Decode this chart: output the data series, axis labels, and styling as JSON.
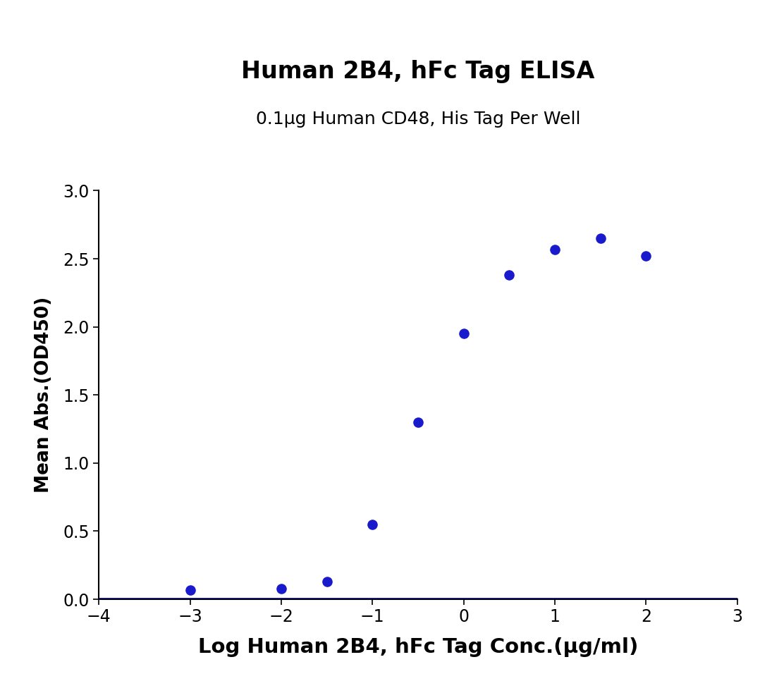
{
  "title": "Human 2B4, hFc Tag ELISA",
  "subtitle": "0.1μg Human CD48, His Tag Per Well",
  "xlabel": "Log Human 2B4, hFc Tag Conc.(μg/ml)",
  "ylabel": "Mean Abs.(OD450)",
  "xlim": [
    -4,
    3
  ],
  "ylim": [
    0.0,
    3.0
  ],
  "xticks": [
    -4,
    -3,
    -2,
    -1,
    0,
    1,
    2,
    3
  ],
  "yticks": [
    0.0,
    0.5,
    1.0,
    1.5,
    2.0,
    2.5,
    3.0
  ],
  "data_x": [
    -3,
    -2,
    -1.5,
    -1,
    -0.5,
    0,
    0.5,
    1,
    1.5,
    2
  ],
  "data_y": [
    0.07,
    0.08,
    0.13,
    0.55,
    1.3,
    1.95,
    2.38,
    2.57,
    2.65,
    2.52
  ],
  "line_color": "#1a1acd",
  "dot_color": "#1a1acd",
  "background_color": "#ffffff",
  "title_fontsize": 24,
  "subtitle_fontsize": 18,
  "xlabel_fontsize": 21,
  "ylabel_fontsize": 19,
  "tick_fontsize": 17,
  "dot_size": 90,
  "line_width": 2.8
}
